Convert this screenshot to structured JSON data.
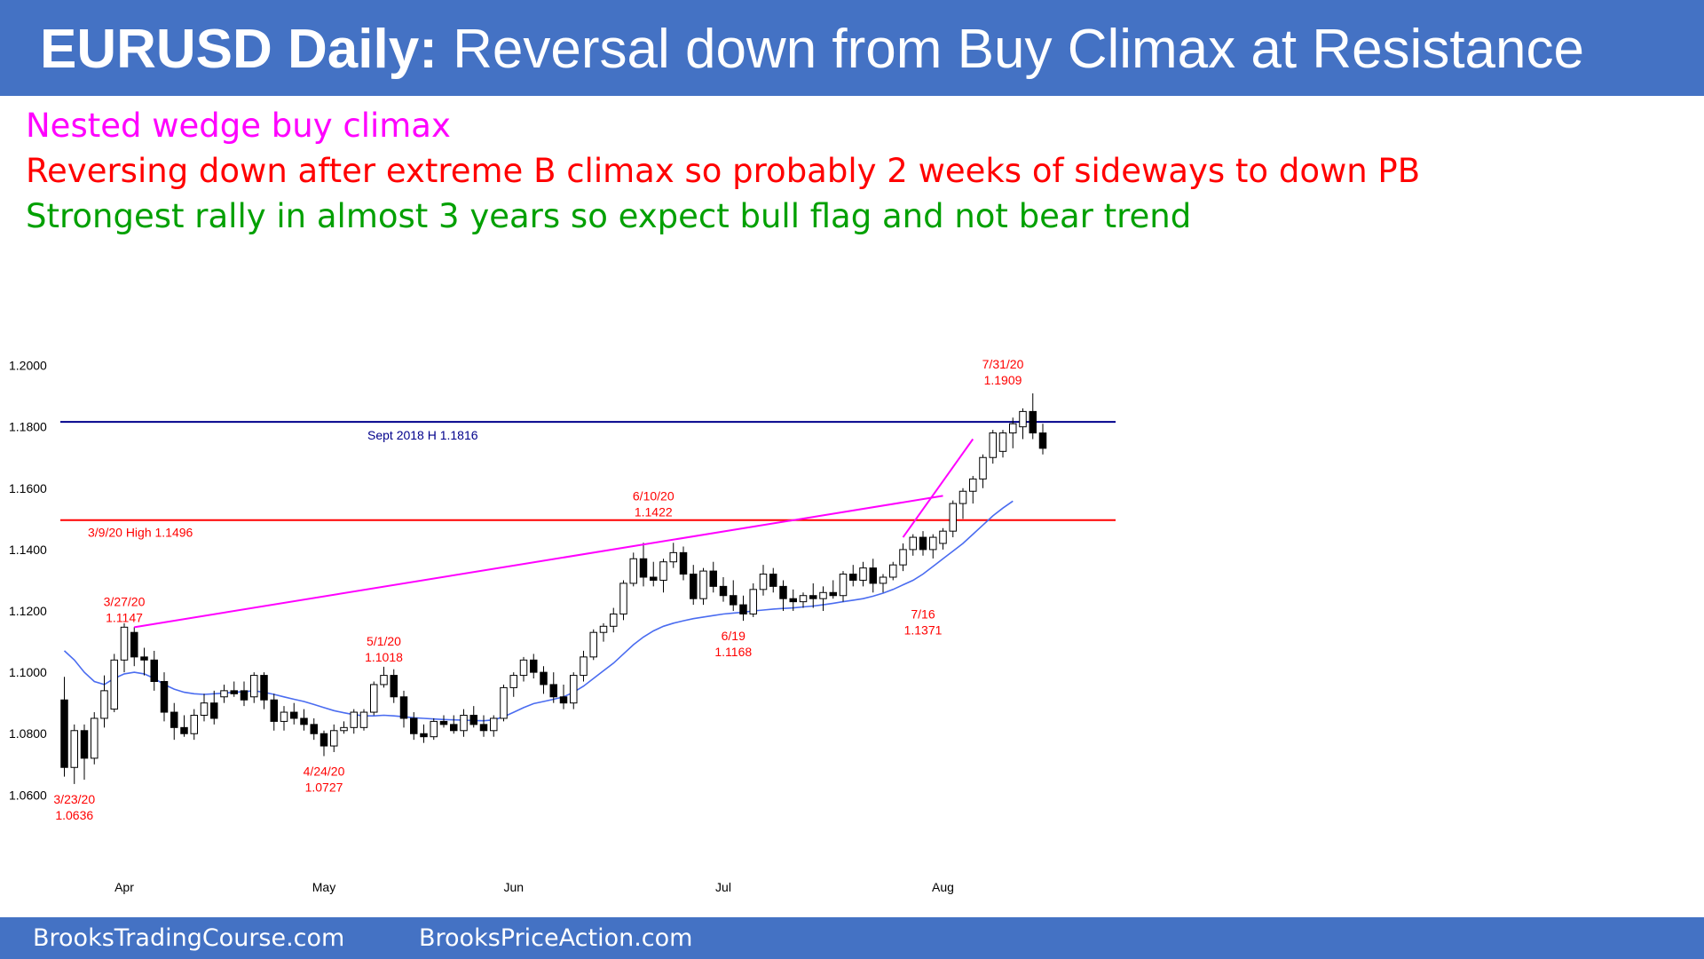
{
  "header": {
    "title_bold": "EURUSD Daily:",
    "title_rest": " Reversal down from Buy Climax at Resistance"
  },
  "notes": [
    {
      "text": "Nested wedge buy climax",
      "color": "#ff00ff"
    },
    {
      "text": "Reversing down after extreme B climax so probably 2 weeks of sideways to down PB",
      "color": "#ff0000"
    },
    {
      "text": "Strongest rally in almost 3 years so expect bull flag and not bear trend",
      "color": "#00a000"
    }
  ],
  "footer": {
    "left": "BrooksTradingCourse.com",
    "right": "BrooksPriceAction.com"
  },
  "chart_data": {
    "type": "candlestick",
    "title": "",
    "ylim": [
      1.052,
      1.21
    ],
    "y_ticks": [
      "1.2000",
      "1.1800",
      "1.1600",
      "1.1400",
      "1.1200",
      "1.1000",
      "1.0800",
      "1.0600"
    ],
    "x_ticks": [
      {
        "label": "Apr",
        "bar": 6
      },
      {
        "label": "May",
        "bar": 26
      },
      {
        "label": "Jun",
        "bar": 45
      },
      {
        "label": "Jul",
        "bar": 66
      },
      {
        "label": "Aug",
        "bar": 88
      }
    ],
    "candles": [
      [
        1.091,
        1.0985,
        1.066,
        1.069
      ],
      [
        1.069,
        1.083,
        1.0636,
        1.081
      ],
      [
        1.081,
        1.083,
        1.065,
        1.072
      ],
      [
        1.072,
        1.087,
        1.07,
        1.085
      ],
      [
        1.085,
        1.099,
        1.082,
        1.094
      ],
      [
        1.088,
        1.106,
        1.087,
        1.104
      ],
      [
        1.104,
        1.116,
        1.1,
        1.1147
      ],
      [
        1.113,
        1.1147,
        1.102,
        1.105
      ],
      [
        1.105,
        1.108,
        1.099,
        1.104
      ],
      [
        1.104,
        1.107,
        1.094,
        1.097
      ],
      [
        1.097,
        1.1,
        1.084,
        1.087
      ],
      [
        1.087,
        1.09,
        1.078,
        1.082
      ],
      [
        1.082,
        1.086,
        1.079,
        1.08
      ],
      [
        1.08,
        1.088,
        1.078,
        1.086
      ],
      [
        1.086,
        1.093,
        1.084,
        1.09
      ],
      [
        1.09,
        1.094,
        1.083,
        1.085
      ],
      [
        1.092,
        1.096,
        1.09,
        1.094
      ],
      [
        1.094,
        1.097,
        1.092,
        1.093
      ],
      [
        1.094,
        1.097,
        1.089,
        1.091
      ],
      [
        1.092,
        1.1,
        1.09,
        1.099
      ],
      [
        1.099,
        1.1,
        1.088,
        1.091
      ],
      [
        1.091,
        1.093,
        1.081,
        1.084
      ],
      [
        1.084,
        1.089,
        1.081,
        1.087
      ],
      [
        1.087,
        1.09,
        1.083,
        1.085
      ],
      [
        1.085,
        1.088,
        1.081,
        1.083
      ],
      [
        1.083,
        1.085,
        1.078,
        1.08
      ],
      [
        1.08,
        1.081,
        1.0727,
        1.076
      ],
      [
        1.076,
        1.083,
        1.074,
        1.081
      ],
      [
        1.081,
        1.084,
        1.08,
        1.082
      ],
      [
        1.082,
        1.088,
        1.08,
        1.087
      ],
      [
        1.082,
        1.088,
        1.081,
        1.087
      ],
      [
        1.087,
        1.097,
        1.086,
        1.096
      ],
      [
        1.096,
        1.1018,
        1.095,
        1.099
      ],
      [
        1.099,
        1.101,
        1.09,
        1.092
      ],
      [
        1.092,
        1.094,
        1.082,
        1.085
      ],
      [
        1.085,
        1.087,
        1.078,
        1.08
      ],
      [
        1.08,
        1.083,
        1.077,
        1.079
      ],
      [
        1.079,
        1.085,
        1.078,
        1.084
      ],
      [
        1.084,
        1.086,
        1.082,
        1.083
      ],
      [
        1.083,
        1.086,
        1.08,
        1.081
      ],
      [
        1.081,
        1.088,
        1.079,
        1.086
      ],
      [
        1.086,
        1.089,
        1.082,
        1.083
      ],
      [
        1.083,
        1.086,
        1.079,
        1.081
      ],
      [
        1.081,
        1.086,
        1.079,
        1.085
      ],
      [
        1.085,
        1.096,
        1.084,
        1.095
      ],
      [
        1.095,
        1.1,
        1.092,
        1.099
      ],
      [
        1.099,
        1.105,
        1.097,
        1.104
      ],
      [
        1.104,
        1.106,
        1.098,
        1.1
      ],
      [
        1.1,
        1.102,
        1.093,
        1.096
      ],
      [
        1.096,
        1.1,
        1.09,
        1.092
      ],
      [
        1.092,
        1.096,
        1.088,
        1.09
      ],
      [
        1.09,
        1.1,
        1.088,
        1.099
      ],
      [
        1.099,
        1.107,
        1.097,
        1.105
      ],
      [
        1.105,
        1.114,
        1.104,
        1.113
      ],
      [
        1.113,
        1.116,
        1.11,
        1.115
      ],
      [
        1.115,
        1.121,
        1.113,
        1.119
      ],
      [
        1.119,
        1.13,
        1.117,
        1.129
      ],
      [
        1.129,
        1.139,
        1.128,
        1.137
      ],
      [
        1.137,
        1.1422,
        1.128,
        1.131
      ],
      [
        1.131,
        1.136,
        1.128,
        1.13
      ],
      [
        1.13,
        1.137,
        1.126,
        1.136
      ],
      [
        1.136,
        1.1422,
        1.134,
        1.139
      ],
      [
        1.139,
        1.141,
        1.13,
        1.132
      ],
      [
        1.132,
        1.135,
        1.122,
        1.124
      ],
      [
        1.124,
        1.134,
        1.122,
        1.133
      ],
      [
        1.133,
        1.136,
        1.126,
        1.128
      ],
      [
        1.128,
        1.131,
        1.123,
        1.125
      ],
      [
        1.125,
        1.13,
        1.12,
        1.122
      ],
      [
        1.122,
        1.125,
        1.1168,
        1.119
      ],
      [
        1.119,
        1.129,
        1.118,
        1.127
      ],
      [
        1.127,
        1.135,
        1.125,
        1.132
      ],
      [
        1.132,
        1.134,
        1.126,
        1.128
      ],
      [
        1.128,
        1.13,
        1.12,
        1.124
      ],
      [
        1.124,
        1.127,
        1.12,
        1.123
      ],
      [
        1.123,
        1.126,
        1.121,
        1.125
      ],
      [
        1.125,
        1.129,
        1.121,
        1.124
      ],
      [
        1.124,
        1.128,
        1.12,
        1.126
      ],
      [
        1.126,
        1.13,
        1.124,
        1.125
      ],
      [
        1.125,
        1.133,
        1.123,
        1.132
      ],
      [
        1.132,
        1.135,
        1.128,
        1.13
      ],
      [
        1.13,
        1.136,
        1.128,
        1.134
      ],
      [
        1.134,
        1.137,
        1.126,
        1.129
      ],
      [
        1.129,
        1.132,
        1.126,
        1.131
      ],
      [
        1.131,
        1.136,
        1.13,
        1.135
      ],
      [
        1.135,
        1.142,
        1.133,
        1.14
      ],
      [
        1.14,
        1.145,
        1.138,
        1.144
      ],
      [
        1.144,
        1.146,
        1.138,
        1.14
      ],
      [
        1.14,
        1.145,
        1.1371,
        1.144
      ],
      [
        1.142,
        1.147,
        1.14,
        1.146
      ],
      [
        1.146,
        1.156,
        1.144,
        1.155
      ],
      [
        1.155,
        1.16,
        1.15,
        1.159
      ],
      [
        1.159,
        1.164,
        1.155,
        1.163
      ],
      [
        1.163,
        1.171,
        1.16,
        1.17
      ],
      [
        1.17,
        1.179,
        1.168,
        1.178
      ],
      [
        1.172,
        1.179,
        1.17,
        1.178
      ],
      [
        1.178,
        1.183,
        1.173,
        1.181
      ],
      [
        1.18,
        1.186,
        1.176,
        1.185
      ],
      [
        1.185,
        1.1909,
        1.176,
        1.178
      ],
      [
        1.178,
        1.181,
        1.171,
        1.173
      ]
    ],
    "moving_average": [
      1.107,
      1.104,
      1.1,
      1.097,
      1.096,
      1.098,
      1.0995,
      1.1,
      1.0995,
      1.098,
      1.096,
      1.0945,
      1.0935,
      1.093,
      1.0928,
      1.093,
      1.0932,
      1.0935,
      1.0937,
      1.094,
      1.0935,
      1.0928,
      1.092,
      1.0912,
      1.0905,
      1.0895,
      1.0885,
      1.0875,
      1.0868,
      1.0862,
      1.0858,
      1.0858,
      1.086,
      1.0858,
      1.0855,
      1.0852,
      1.085,
      1.0848,
      1.0846,
      1.0845,
      1.0844,
      1.0843,
      1.0842,
      1.0845,
      1.0855,
      1.087,
      1.0885,
      1.0898,
      1.0905,
      1.0912,
      1.092,
      1.0935,
      1.0955,
      1.098,
      1.1005,
      1.103,
      1.106,
      1.109,
      1.1115,
      1.1135,
      1.115,
      1.116,
      1.1168,
      1.1175,
      1.118,
      1.1185,
      1.119,
      1.1193,
      1.1196,
      1.12,
      1.1203,
      1.1206,
      1.1208,
      1.121,
      1.1213,
      1.1216,
      1.122,
      1.1225,
      1.123,
      1.1235,
      1.124,
      1.1248,
      1.1258,
      1.127,
      1.1285,
      1.13,
      1.132,
      1.1345,
      1.137,
      1.1395,
      1.142,
      1.145,
      1.148,
      1.151,
      1.1535,
      1.1558
    ],
    "lines": [
      {
        "kind": "horizontal",
        "value": 1.1816,
        "color": "#00008b",
        "label": "Sept 2018 H 1.1816"
      },
      {
        "kind": "horizontal",
        "value": 1.1496,
        "color": "#ff0000",
        "label": "3/9/20 High 1.1496"
      },
      {
        "kind": "trendline",
        "from": [
          7,
          1.1147
        ],
        "to": [
          88,
          1.1575
        ],
        "color": "#ff00ff"
      },
      {
        "kind": "trendline",
        "from": [
          84,
          1.144
        ],
        "to": [
          91,
          1.176
        ],
        "color": "#ff00ff"
      }
    ],
    "annotations": [
      {
        "bar": 1,
        "value": 1.0636,
        "lines": [
          "3/23/20",
          "1.0636"
        ],
        "side": "below"
      },
      {
        "bar": 6,
        "value": 1.1147,
        "lines": [
          "3/27/20",
          "1.1147"
        ],
        "side": "above"
      },
      {
        "bar": 26,
        "value": 1.0727,
        "lines": [
          "4/24/20",
          "1.0727"
        ],
        "side": "below"
      },
      {
        "bar": 32,
        "value": 1.1018,
        "lines": [
          "5/1/20",
          "1.1018"
        ],
        "side": "above"
      },
      {
        "bar": 59,
        "value": 1.1422,
        "lines": [
          "6/10/20",
          "1.1422"
        ],
        "side": "above",
        "label_value": 1.156
      },
      {
        "bar": 67,
        "value": 1.1168,
        "lines": [
          "6/19",
          "1.1168"
        ],
        "side": "below"
      },
      {
        "bar": 86,
        "value": 1.1371,
        "lines": [
          "7/16",
          "1.1371"
        ],
        "side": "below",
        "label_value": 1.1175
      },
      {
        "bar": 94,
        "value": 1.1909,
        "lines": [
          "7/31/20",
          "1.1909"
        ],
        "side": "above",
        "label_value": 1.199
      }
    ],
    "colors": {
      "bear": "#000000",
      "bull": "#ffffff",
      "ma": "#4a6cf0",
      "label": "#ff0000",
      "resistance_label": "#00008b"
    }
  }
}
